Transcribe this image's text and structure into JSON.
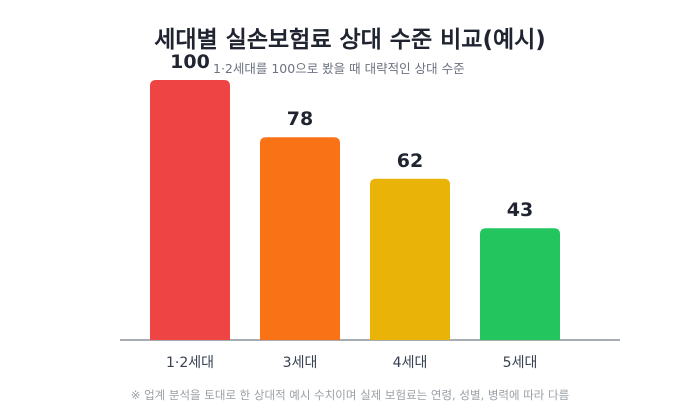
{
  "chart_data": {
    "type": "bar",
    "title": "세대별 실손보험료 상대 수준 비교(예시)",
    "subtitle": "1·2세대를 100으로 봤을 때 대략적인 상대 수준",
    "note": "※ 업계 분석을 토대로 한 상대적 예시 수치이며 실제 보험료는 연령, 성별, 병력에 따라 다름",
    "categories": [
      "1·2세대",
      "3세대",
      "4세대",
      "5세대"
    ],
    "values": [
      100,
      78,
      62,
      43
    ],
    "colors": [
      "#ef4444",
      "#f97316",
      "#eab308",
      "#22c55e"
    ],
    "ylim": [
      0,
      100
    ],
    "grid": false,
    "legend": "none",
    "xlabel": "",
    "ylabel": ""
  }
}
